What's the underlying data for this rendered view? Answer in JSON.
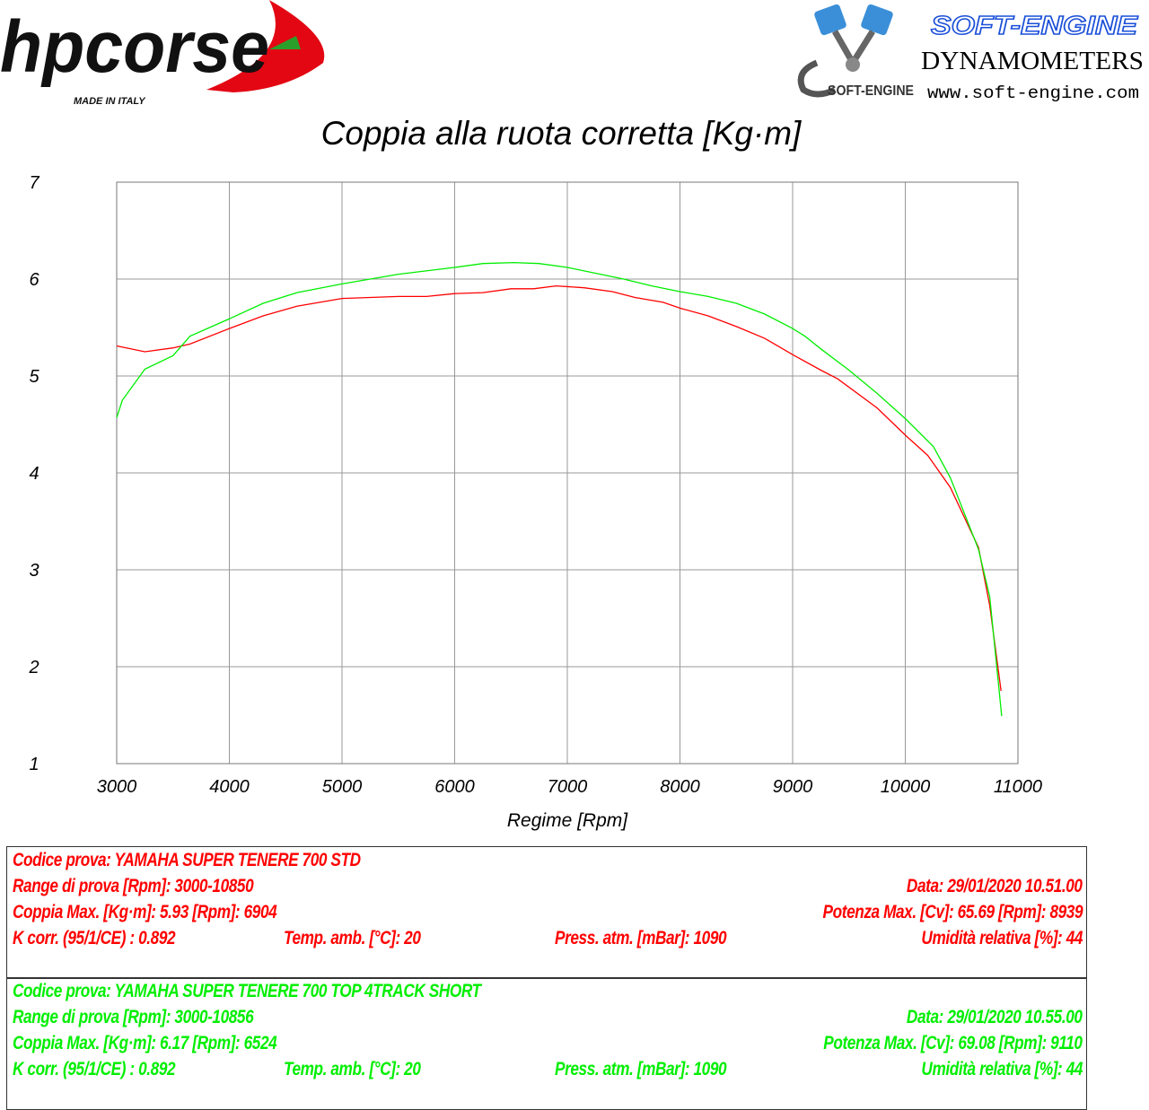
{
  "logos": {
    "left": {
      "text": "hpcorse",
      "subtitle": "MADE IN ITALY"
    },
    "right": {
      "brand": "SOFT-ENGINE",
      "line2": "DYNAMOMETERS",
      "url": "www.soft-engine.com",
      "mark": "SOFT-ENGINE"
    }
  },
  "chart_data": {
    "type": "line",
    "title": "Coppia alla ruota corretta [Kg·m]",
    "xlabel": "Regime [Rpm]",
    "ylabel": "",
    "xlim": [
      3000,
      11000
    ],
    "ylim": [
      1,
      7
    ],
    "xticks": [
      3000,
      4000,
      5000,
      6000,
      7000,
      8000,
      9000,
      10000,
      11000
    ],
    "yticks": [
      1,
      2,
      3,
      4,
      5,
      6,
      7
    ],
    "grid": true,
    "series": [
      {
        "color": "#ff0000",
        "x": [
          3000,
          3250,
          3500,
          3650,
          4000,
          4300,
          4600,
          5000,
          5500,
          5750,
          6000,
          6250,
          6500,
          6700,
          6900,
          7150,
          7400,
          7600,
          7850,
          8000,
          8250,
          8500,
          8750,
          9000,
          9250,
          9400,
          9750,
          10000,
          10200,
          10400,
          10650,
          10750,
          10850
        ],
        "y": [
          5.31,
          5.25,
          5.29,
          5.33,
          5.49,
          5.62,
          5.72,
          5.8,
          5.82,
          5.82,
          5.85,
          5.86,
          5.9,
          5.9,
          5.93,
          5.91,
          5.87,
          5.81,
          5.76,
          5.7,
          5.62,
          5.51,
          5.39,
          5.22,
          5.06,
          4.97,
          4.67,
          4.39,
          4.18,
          3.85,
          3.23,
          2.63,
          1.75
        ]
      },
      {
        "color": "#00ee00",
        "x": [
          3000,
          3050,
          3250,
          3500,
          3650,
          4000,
          4300,
          4600,
          5000,
          5500,
          6000,
          6250,
          6524,
          6750,
          7000,
          7250,
          7500,
          7750,
          8000,
          8250,
          8500,
          8750,
          9000,
          9110,
          9250,
          9500,
          9750,
          10000,
          10250,
          10400,
          10650,
          10750,
          10856
        ],
        "y": [
          4.57,
          4.75,
          5.07,
          5.21,
          5.41,
          5.59,
          5.75,
          5.86,
          5.95,
          6.05,
          6.12,
          6.16,
          6.17,
          6.16,
          6.12,
          6.06,
          6.0,
          5.93,
          5.87,
          5.82,
          5.75,
          5.64,
          5.49,
          5.41,
          5.28,
          5.06,
          4.82,
          4.56,
          4.27,
          3.95,
          3.21,
          2.72,
          1.49
        ]
      }
    ]
  },
  "tests": [
    {
      "color": "#ff0000",
      "codice": "Codice prova: YAMAHA SUPER TENERE 700 STD",
      "range": "Range di prova [Rpm]: 3000-10850",
      "data": "Data: 29/01/2020   10.51.00",
      "coppia": "Coppia Max. [Kg·m]: 5.93   [Rpm]: 6904",
      "potenza": "Potenza Max. [Cv]: 65.69   [Rpm]: 8939",
      "kcorr": "K corr. (95/1/CE) : 0.892",
      "temp": "Temp. amb. [°C]: 20",
      "press": "Press. atm. [mBar]: 1090",
      "umid": "Umidità relativa [%]: 44"
    },
    {
      "color": "#00ee00",
      "codice": "Codice prova: YAMAHA SUPER TENERE 700 TOP 4TRACK SHORT",
      "range": "Range di prova [Rpm]: 3000-10856",
      "data": "Data: 29/01/2020   10.55.00",
      "coppia": "Coppia Max. [Kg·m]: 6.17   [Rpm]: 6524",
      "potenza": "Potenza Max. [Cv]: 69.08   [Rpm]: 9110",
      "kcorr": "K corr. (95/1/CE) : 0.892",
      "temp": "Temp. amb. [°C]: 20",
      "press": "Press. atm. [mBar]: 1090",
      "umid": "Umidità relativa [%]: 44"
    }
  ]
}
